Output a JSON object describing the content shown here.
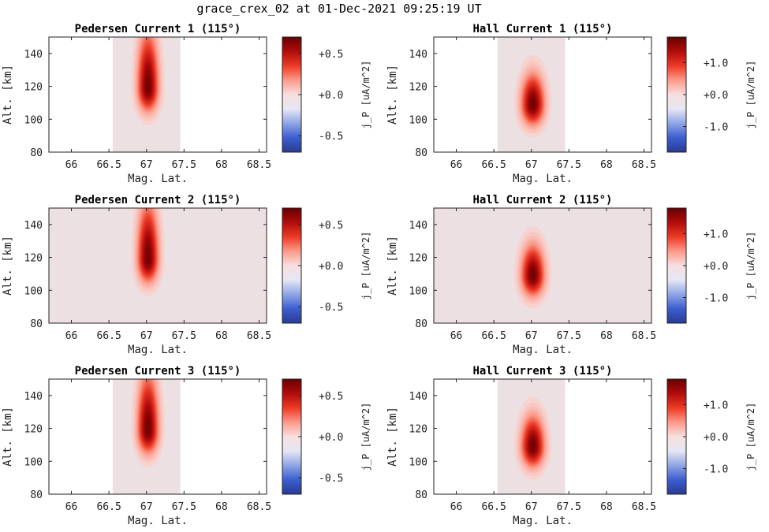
{
  "figure": {
    "title": "grace_crex_02 at 01-Dec-2021 09:25:19 UT"
  },
  "colors": {
    "colormap": [
      "#2a3b8f",
      "#3c5ed0",
      "#8fa5e6",
      "#e6e6f5",
      "#f6dfdf",
      "#fb9a8a",
      "#ec3a25",
      "#b10c0c",
      "#6a0000"
    ],
    "background_patch": "#ece0e3",
    "frame": "#222222"
  },
  "chart_data": [
    {
      "type": "heatmap",
      "id": "pedersen1",
      "title": "Pedersen Current 1 (115°)",
      "xlabel": "Mag. Lat.",
      "ylabel": "Alt. [km]",
      "xlim": [
        65.7,
        68.6
      ],
      "ylim": [
        80,
        150
      ],
      "xticks": [
        66,
        66.5,
        67,
        67.5,
        68,
        68.5
      ],
      "xticklabels": [
        "66",
        "66.5",
        "67",
        "67.5",
        "68",
        "68.5"
      ],
      "yticks": [
        80,
        100,
        120,
        140
      ],
      "yticklabels": [
        "80",
        "100",
        "120",
        "140"
      ],
      "data_extent_lat": [
        66.55,
        67.45
      ],
      "blob": {
        "center_lat": 67.02,
        "center_alt": 119,
        "peak": 0.7,
        "sigma_lat": 0.09,
        "sigma_alt_low": 9,
        "sigma_alt_high": 22
      },
      "colorbar": {
        "label": "j_P [uA/m^2]",
        "vmin": -0.7,
        "vmax": 0.7,
        "ticks": [
          -0.5,
          0.0,
          0.5
        ],
        "ticklabels": [
          "-0.5",
          "+0.0",
          "+0.5"
        ]
      }
    },
    {
      "type": "heatmap",
      "id": "hall1",
      "title": "Hall Current 1 (115°)",
      "xlabel": "Mag. Lat.",
      "ylabel": "Alt. [km]",
      "xlim": [
        65.7,
        68.6
      ],
      "ylim": [
        80,
        150
      ],
      "xticks": [
        66,
        66.5,
        67,
        67.5,
        68,
        68.5
      ],
      "xticklabels": [
        "66",
        "66.5",
        "67",
        "67.5",
        "68",
        "68.5"
      ],
      "yticks": [
        80,
        100,
        120,
        140
      ],
      "yticklabels": [
        "80",
        "100",
        "120",
        "140"
      ],
      "data_extent_lat": [
        66.55,
        67.45
      ],
      "blob": {
        "center_lat": 67.02,
        "center_alt": 109,
        "peak": 1.8,
        "sigma_lat": 0.1,
        "sigma_alt_low": 8,
        "sigma_alt_high": 12
      },
      "colorbar": {
        "label": "j_P [uA/m^2]",
        "vmin": -1.8,
        "vmax": 1.8,
        "ticks": [
          -1.0,
          0.0,
          1.0
        ],
        "ticklabels": [
          "-1.0",
          "+0.0",
          "+1.0"
        ]
      }
    },
    {
      "type": "heatmap",
      "id": "pedersen2",
      "title": "Pedersen Current 2 (115°)",
      "xlabel": "Mag. Lat.",
      "ylabel": "Alt. [km]",
      "xlim": [
        65.7,
        68.6
      ],
      "ylim": [
        80,
        150
      ],
      "xticks": [
        66,
        66.5,
        67,
        67.5,
        68,
        68.5
      ],
      "xticklabels": [
        "66",
        "66.5",
        "67",
        "67.5",
        "68",
        "68.5"
      ],
      "yticks": [
        80,
        100,
        120,
        140
      ],
      "yticklabels": [
        "80",
        "100",
        "120",
        "140"
      ],
      "data_extent_lat": [
        65.7,
        68.6
      ],
      "blob": {
        "center_lat": 67.02,
        "center_alt": 119,
        "peak": 0.7,
        "sigma_lat": 0.09,
        "sigma_alt_low": 9,
        "sigma_alt_high": 22
      },
      "colorbar": {
        "label": "j_P [uA/m^2]",
        "vmin": -0.7,
        "vmax": 0.7,
        "ticks": [
          -0.5,
          0.0,
          0.5
        ],
        "ticklabels": [
          "-0.5",
          "+0.0",
          "+0.5"
        ]
      }
    },
    {
      "type": "heatmap",
      "id": "hall2",
      "title": "Hall Current 2 (115°)",
      "xlabel": "Mag. Lat.",
      "ylabel": "Alt. [km]",
      "xlim": [
        65.7,
        68.6
      ],
      "ylim": [
        80,
        150
      ],
      "xticks": [
        66,
        66.5,
        67,
        67.5,
        68,
        68.5
      ],
      "xticklabels": [
        "66",
        "66.5",
        "67",
        "67.5",
        "68",
        "68.5"
      ],
      "yticks": [
        80,
        100,
        120,
        140
      ],
      "yticklabels": [
        "80",
        "100",
        "120",
        "140"
      ],
      "data_extent_lat": [
        65.7,
        68.6
      ],
      "blob": {
        "center_lat": 67.02,
        "center_alt": 109,
        "peak": 1.8,
        "sigma_lat": 0.1,
        "sigma_alt_low": 8,
        "sigma_alt_high": 12
      },
      "colorbar": {
        "label": "j_P [uA/m^2]",
        "vmin": -1.8,
        "vmax": 1.8,
        "ticks": [
          -1.0,
          0.0,
          1.0
        ],
        "ticklabels": [
          "-1.0",
          "+0.0",
          "+1.0"
        ]
      }
    },
    {
      "type": "heatmap",
      "id": "pedersen3",
      "title": "Pedersen Current 3 (115°)",
      "xlabel": "Mag. Lat.",
      "ylabel": "Alt. [km]",
      "xlim": [
        65.7,
        68.6
      ],
      "ylim": [
        80,
        150
      ],
      "xticks": [
        66,
        66.5,
        67,
        67.5,
        68,
        68.5
      ],
      "xticklabels": [
        "66",
        "66.5",
        "67",
        "67.5",
        "68",
        "68.5"
      ],
      "yticks": [
        80,
        100,
        120,
        140
      ],
      "yticklabels": [
        "80",
        "100",
        "120",
        "140"
      ],
      "data_extent_lat": [
        66.55,
        67.45
      ],
      "blob": {
        "center_lat": 67.02,
        "center_alt": 119,
        "peak": 0.7,
        "sigma_lat": 0.09,
        "sigma_alt_low": 9,
        "sigma_alt_high": 22
      },
      "colorbar": {
        "label": "j_P [uA/m^2]",
        "vmin": -0.7,
        "vmax": 0.7,
        "ticks": [
          -0.5,
          0.0,
          0.5
        ],
        "ticklabels": [
          "-0.5",
          "+0.0",
          "+0.5"
        ]
      }
    },
    {
      "type": "heatmap",
      "id": "hall3",
      "title": "Hall Current 3 (115°)",
      "xlabel": "Mag. Lat.",
      "ylabel": "Alt. [km]",
      "xlim": [
        65.7,
        68.6
      ],
      "ylim": [
        80,
        150
      ],
      "xticks": [
        66,
        66.5,
        67,
        67.5,
        68,
        68.5
      ],
      "xticklabels": [
        "66",
        "66.5",
        "67",
        "67.5",
        "68",
        "68.5"
      ],
      "yticks": [
        80,
        100,
        120,
        140
      ],
      "yticklabels": [
        "80",
        "100",
        "120",
        "140"
      ],
      "data_extent_lat": [
        66.55,
        67.45
      ],
      "blob": {
        "center_lat": 67.02,
        "center_alt": 109,
        "peak": 1.8,
        "sigma_lat": 0.1,
        "sigma_alt_low": 8,
        "sigma_alt_high": 12
      },
      "colorbar": {
        "label": "j_P [uA/m^2]",
        "vmin": -1.8,
        "vmax": 1.8,
        "ticks": [
          -1.0,
          0.0,
          1.0
        ],
        "ticklabels": [
          "-1.0",
          "+0.0",
          "+1.0"
        ]
      }
    }
  ]
}
